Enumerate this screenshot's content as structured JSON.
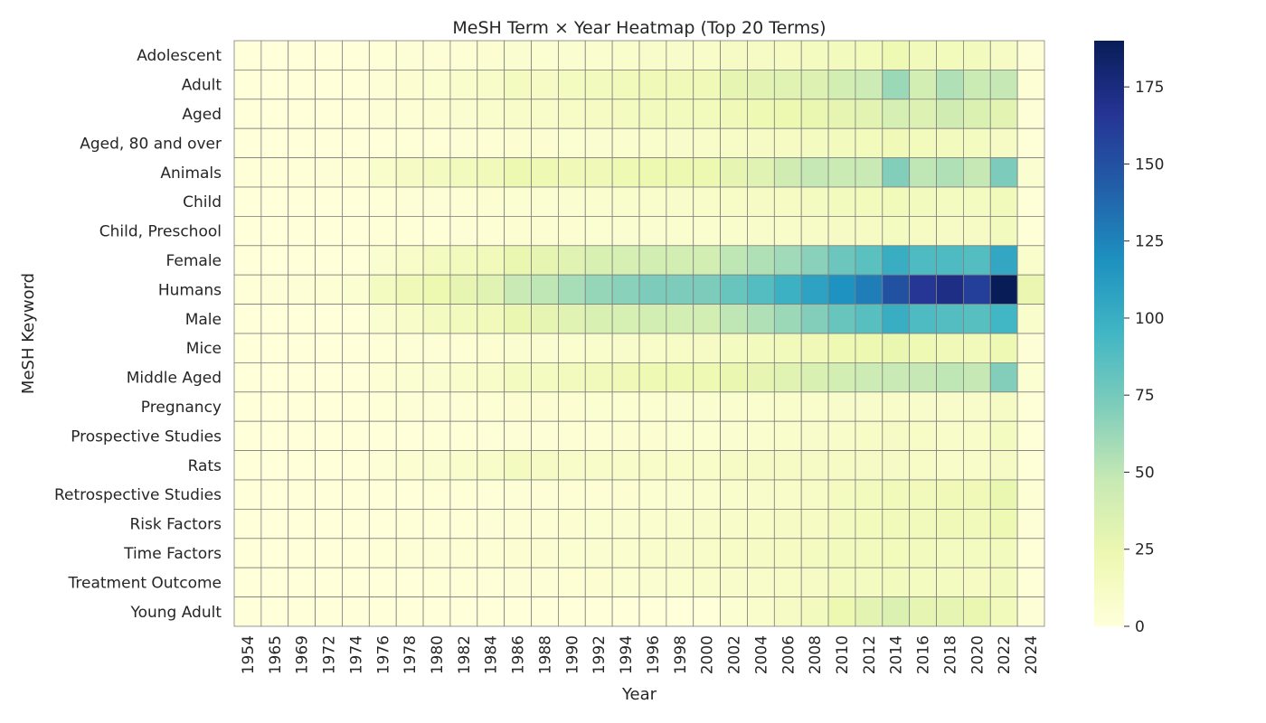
{
  "chart_data": {
    "type": "heatmap",
    "title": "MeSH Term × Year Heatmap (Top 20 Terms)",
    "xlabel": "Year",
    "ylabel": "MeSH Keyword",
    "years": [
      "1954",
      "1965",
      "1969",
      "1972",
      "1974",
      "1976",
      "1978",
      "1980",
      "1982",
      "1984",
      "1986",
      "1988",
      "1990",
      "1992",
      "1994",
      "1996",
      "1998",
      "2000",
      "2002",
      "2004",
      "2006",
      "2008",
      "2010",
      "2012",
      "2014",
      "2016",
      "2018",
      "2020",
      "2022",
      "2024"
    ],
    "x_tick_labels": [
      "1954",
      "1965",
      "1969",
      "1972",
      "1974",
      "1976",
      "1978",
      "1980",
      "1982",
      "1984",
      "1986",
      "1988",
      "1990",
      "1992",
      "1994",
      "1996",
      "1998",
      "2000",
      "2002",
      "2004",
      "2006",
      "2008",
      "2010",
      "2012",
      "2014",
      "2016",
      "2018",
      "2020",
      "2022",
      "2024"
    ],
    "colorbar": {
      "min": 0,
      "max": 190,
      "ticks": [
        0,
        25,
        50,
        75,
        100,
        125,
        150,
        175
      ],
      "colormap": "YlGnBu"
    },
    "rows": [
      {
        "term": "Adolescent",
        "values": [
          0,
          0,
          0,
          0,
          0,
          1,
          2,
          2,
          3,
          4,
          6,
          5,
          6,
          7,
          8,
          9,
          9,
          10,
          12,
          12,
          13,
          14,
          16,
          17,
          22,
          18,
          17,
          16,
          12,
          2
        ]
      },
      {
        "term": "Adult",
        "values": [
          0,
          0,
          0,
          0,
          0,
          2,
          4,
          5,
          8,
          10,
          14,
          12,
          14,
          16,
          18,
          20,
          20,
          20,
          28,
          30,
          32,
          34,
          40,
          44,
          62,
          40,
          55,
          45,
          48,
          3
        ]
      },
      {
        "term": "Aged",
        "values": [
          0,
          0,
          0,
          0,
          0,
          2,
          3,
          4,
          6,
          8,
          10,
          10,
          11,
          13,
          14,
          16,
          16,
          17,
          20,
          22,
          24,
          26,
          28,
          30,
          38,
          34,
          42,
          35,
          30,
          2
        ]
      },
      {
        "term": "Aged, 80 and over",
        "values": [
          0,
          0,
          0,
          0,
          0,
          0,
          1,
          1,
          2,
          3,
          4,
          4,
          5,
          6,
          7,
          8,
          9,
          10,
          11,
          12,
          13,
          14,
          16,
          17,
          19,
          17,
          16,
          15,
          12,
          1
        ]
      },
      {
        "term": "Animals",
        "values": [
          1,
          1,
          1,
          2,
          3,
          8,
          12,
          14,
          16,
          18,
          24,
          22,
          20,
          20,
          22,
          24,
          24,
          24,
          28,
          32,
          42,
          48,
          45,
          46,
          70,
          50,
          55,
          48,
          72,
          6
        ]
      },
      {
        "term": "Child",
        "values": [
          0,
          0,
          0,
          0,
          0,
          1,
          2,
          2,
          3,
          4,
          5,
          5,
          6,
          7,
          8,
          8,
          9,
          10,
          11,
          12,
          13,
          14,
          16,
          17,
          18,
          16,
          15,
          14,
          18,
          1
        ]
      },
      {
        "term": "Child, Preschool",
        "values": [
          0,
          0,
          0,
          0,
          0,
          1,
          1,
          1,
          2,
          3,
          4,
          4,
          4,
          5,
          6,
          6,
          7,
          7,
          8,
          9,
          10,
          11,
          12,
          13,
          14,
          13,
          12,
          12,
          16,
          1
        ]
      },
      {
        "term": "Female",
        "values": [
          0,
          0,
          0,
          0,
          0,
          6,
          10,
          14,
          16,
          18,
          26,
          28,
          32,
          36,
          38,
          40,
          40,
          40,
          50,
          55,
          60,
          68,
          78,
          85,
          100,
          90,
          90,
          88,
          105,
          8
        ]
      },
      {
        "term": "Humans",
        "values": [
          1,
          2,
          2,
          3,
          5,
          14,
          20,
          24,
          28,
          32,
          46,
          50,
          58,
          64,
          68,
          72,
          72,
          72,
          80,
          88,
          98,
          108,
          118,
          128,
          150,
          165,
          172,
          160,
          190,
          25
        ]
      },
      {
        "term": "Male",
        "values": [
          0,
          0,
          0,
          0,
          0,
          6,
          10,
          14,
          16,
          18,
          26,
          28,
          32,
          36,
          38,
          40,
          40,
          40,
          50,
          55,
          62,
          70,
          80,
          86,
          100,
          90,
          88,
          86,
          95,
          8
        ]
      },
      {
        "term": "Mice",
        "values": [
          0,
          0,
          0,
          0,
          0,
          1,
          2,
          2,
          3,
          4,
          6,
          6,
          7,
          8,
          9,
          10,
          11,
          12,
          14,
          16,
          18,
          20,
          22,
          24,
          26,
          22,
          20,
          18,
          22,
          2
        ]
      },
      {
        "term": "Middle Aged",
        "values": [
          0,
          0,
          0,
          0,
          0,
          3,
          5,
          6,
          8,
          10,
          14,
          14,
          16,
          18,
          20,
          22,
          22,
          22,
          26,
          28,
          32,
          36,
          40,
          44,
          46,
          48,
          50,
          48,
          70,
          5
        ]
      },
      {
        "term": "Pregnancy",
        "values": [
          0,
          0,
          0,
          0,
          0,
          1,
          2,
          2,
          2,
          3,
          4,
          4,
          4,
          5,
          5,
          5,
          6,
          6,
          7,
          7,
          8,
          8,
          9,
          9,
          10,
          9,
          9,
          9,
          12,
          1
        ]
      },
      {
        "term": "Prospective Studies",
        "values": [
          0,
          0,
          0,
          0,
          0,
          0,
          0,
          1,
          1,
          1,
          2,
          2,
          3,
          3,
          4,
          4,
          5,
          5,
          6,
          7,
          8,
          9,
          10,
          11,
          12,
          11,
          10,
          10,
          14,
          1
        ]
      },
      {
        "term": "Rats",
        "values": [
          0,
          0,
          0,
          0,
          0,
          2,
          4,
          6,
          8,
          10,
          14,
          12,
          10,
          10,
          10,
          10,
          10,
          10,
          12,
          12,
          12,
          12,
          12,
          12,
          12,
          11,
          10,
          10,
          12,
          1
        ]
      },
      {
        "term": "Retrospective Studies",
        "values": [
          0,
          0,
          0,
          0,
          0,
          0,
          0,
          1,
          1,
          1,
          2,
          2,
          3,
          3,
          4,
          5,
          6,
          7,
          8,
          9,
          10,
          11,
          14,
          16,
          18,
          18,
          20,
          20,
          26,
          3
        ]
      },
      {
        "term": "Risk Factors",
        "values": [
          0,
          0,
          0,
          0,
          0,
          0,
          1,
          1,
          1,
          2,
          3,
          3,
          4,
          5,
          6,
          7,
          8,
          9,
          10,
          11,
          12,
          13,
          15,
          17,
          18,
          18,
          19,
          18,
          22,
          2
        ]
      },
      {
        "term": "Time Factors",
        "values": [
          0,
          0,
          0,
          0,
          0,
          1,
          2,
          2,
          3,
          3,
          4,
          4,
          5,
          6,
          7,
          8,
          9,
          10,
          11,
          12,
          13,
          14,
          16,
          16,
          17,
          16,
          15,
          14,
          16,
          1
        ]
      },
      {
        "term": "Treatment Outcome",
        "values": [
          0,
          0,
          0,
          0,
          0,
          0,
          0,
          1,
          1,
          1,
          2,
          2,
          3,
          4,
          5,
          6,
          7,
          8,
          9,
          10,
          11,
          12,
          14,
          15,
          16,
          15,
          14,
          13,
          16,
          1
        ]
      },
      {
        "term": "Young Adult",
        "values": [
          0,
          0,
          0,
          0,
          0,
          0,
          0,
          0,
          0,
          0,
          0,
          0,
          0,
          0,
          0,
          0,
          0,
          0,
          5,
          8,
          12,
          16,
          24,
          30,
          35,
          28,
          28,
          26,
          18,
          2
        ]
      }
    ]
  }
}
